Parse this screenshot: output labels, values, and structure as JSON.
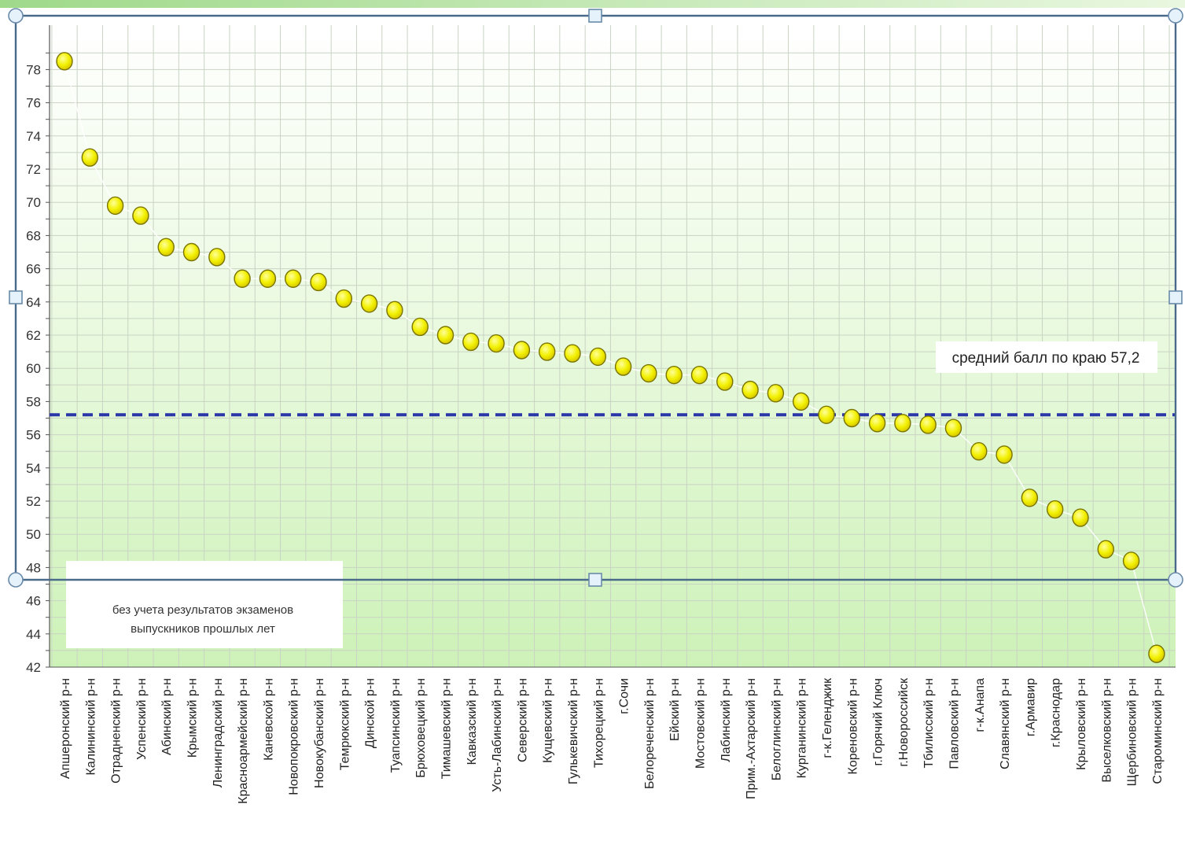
{
  "chart_data": {
    "type": "scatter",
    "title": "",
    "xlabel": "",
    "ylabel": "",
    "ylim": [
      42,
      79
    ],
    "y_ticks": [
      42,
      44,
      46,
      48,
      50,
      52,
      54,
      56,
      58,
      60,
      62,
      64,
      66,
      68,
      70,
      72,
      74,
      76,
      78
    ],
    "grid": true,
    "categories": [
      "Апшеронский р-н",
      "Калининский р-н",
      "Отрадненский р-н",
      "Успенский р-н",
      "Абинский р-н",
      "Крымский р-н",
      "Ленинградский р-н",
      "Красноармейский р-н",
      "Каневской р-н",
      "Новопокровский р-н",
      "Новокубанский р-н",
      "Темрюкский р-н",
      "Динской р-н",
      "Туапсинский р-н",
      "Брюховецкий р-н",
      "Тимашевский р-н",
      "Кавказский р-н",
      "Усть-Лабинский р-н",
      "Северский р-н",
      "Кущевский р-н",
      "Гулькевичский р-н",
      "Тихорецкий р-н",
      "г.Сочи",
      "Белореченский р-н",
      "Ейский р-н",
      "Мостовский р-н",
      "Лабинский р-н",
      "Прим.-Ахтарский р-н",
      "Белоглинский р-н",
      "Курганинский р-н",
      "г-к.Геленджик",
      "Кореновский р-н",
      "г.Горячий Ключ",
      "г.Новороссийск",
      "Тбилисский р-н",
      "Павловский р-н",
      "г-к.Анапа",
      "Славянский р-н",
      "г.Армавир",
      "г.Краснодар",
      "Крыловский р-н",
      "Выселковский р-н",
      "Щербиновский р-н",
      "Староминский р-н"
    ],
    "values": [
      78.5,
      72.7,
      69.8,
      69.2,
      67.3,
      67.0,
      66.7,
      65.4,
      65.4,
      65.4,
      65.2,
      64.2,
      63.9,
      63.5,
      62.5,
      62.0,
      61.6,
      61.5,
      61.1,
      61.0,
      60.9,
      60.7,
      60.1,
      59.7,
      59.6,
      59.6,
      59.2,
      58.7,
      58.5,
      58.0,
      57.2,
      57.0,
      56.7,
      56.7,
      56.6,
      56.4,
      55.0,
      54.8,
      52.2,
      51.5,
      51.0,
      49.1,
      48.4,
      42.8
    ],
    "reference_line": {
      "value": 57.2,
      "label": "средний балл по краю 57,2",
      "color": "#2b36a8"
    },
    "annotation": "без учета результатов экзаменов выпускников прошлых лет",
    "point_color": "#f2f000",
    "point_stroke": "#7a7400"
  }
}
